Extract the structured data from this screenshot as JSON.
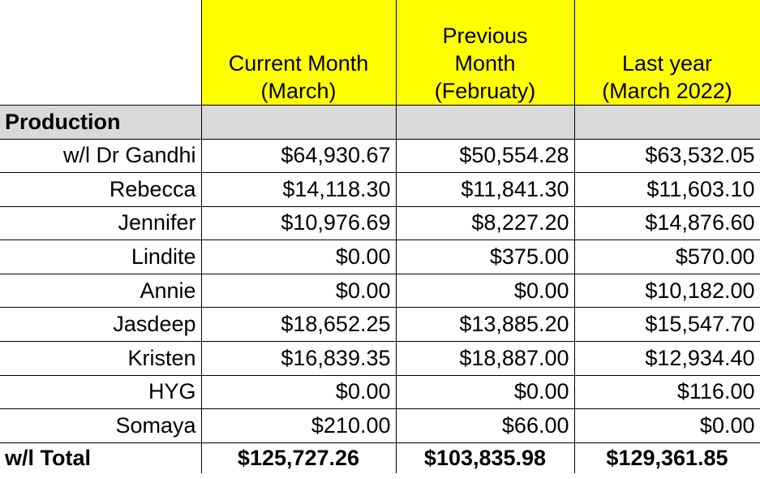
{
  "headers": {
    "current": [
      "Current Month",
      "(March)"
    ],
    "previous": [
      "Previous",
      "Month",
      "(Februaty)"
    ],
    "last_year": [
      "Last year",
      "(March 2022)"
    ]
  },
  "section_label": "Production",
  "rows": [
    {
      "name": "w/l Dr Gandhi",
      "current": "$64,930.67",
      "previous": "$50,554.28",
      "last_year": "$63,532.05"
    },
    {
      "name": "Rebecca",
      "current": "$14,118.30",
      "previous": "$11,841.30",
      "last_year": "$11,603.10"
    },
    {
      "name": "Jennifer",
      "current": "$10,976.69",
      "previous": "$8,227.20",
      "last_year": "$14,876.60"
    },
    {
      "name": "Lindite",
      "current": "$0.00",
      "previous": "$375.00",
      "last_year": "$570.00"
    },
    {
      "name": "Annie",
      "current": "$0.00",
      "previous": "$0.00",
      "last_year": "$10,182.00"
    },
    {
      "name": "Jasdeep",
      "current": "$18,652.25",
      "previous": "$13,885.20",
      "last_year": "$15,547.70"
    },
    {
      "name": "Kristen",
      "current": "$16,839.35",
      "previous": "$18,887.00",
      "last_year": "$12,934.40"
    },
    {
      "name": "HYG",
      "current": "$0.00",
      "previous": "$0.00",
      "last_year": "$116.00"
    },
    {
      "name": "Somaya",
      "current": "$210.00",
      "previous": "$66.00",
      "last_year": "$0.00"
    }
  ],
  "total": {
    "name": "w/l  Total",
    "current": "$125,727.26",
    "previous": "$103,835.98",
    "last_year": "$129,361.85"
  },
  "colors": {
    "header_fill": "#ffff00",
    "section_fill": "#d9d9d9",
    "grid": "#000000"
  }
}
